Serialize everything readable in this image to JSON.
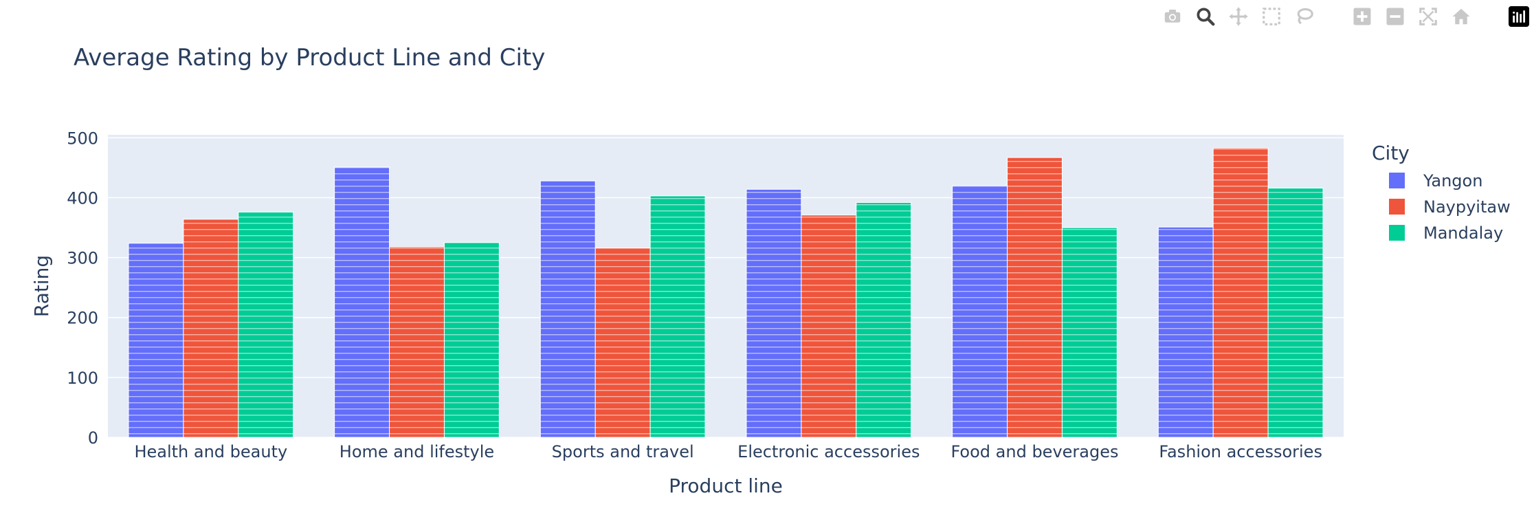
{
  "modebar": {
    "buttons": [
      "camera-icon",
      "zoom-icon",
      "pan-icon",
      "box-select-icon",
      "lasso-icon",
      "zoom-in-icon",
      "zoom-out-icon",
      "autoscale-icon",
      "home-icon",
      "plotly-logo-icon"
    ]
  },
  "colors": {
    "Yangon": "#636efa",
    "Naypyitaw": "#ef553b",
    "Mandalay": "#00cc96",
    "plot_bg": "#e5ecf6",
    "grid": "#ffffff",
    "text": "#2a3f5f"
  },
  "chart_data": {
    "type": "bar",
    "barmode": "group",
    "title": "Average Rating by Product Line and City",
    "xlabel": "Product line",
    "ylabel": "Rating",
    "ylim": [
      0,
      505
    ],
    "yticks": [
      0,
      100,
      200,
      300,
      400,
      500
    ],
    "grid": true,
    "legend_title": "City",
    "legend_position": "right",
    "categories": [
      "Health and beauty",
      "Home and lifestyle",
      "Sports and travel",
      "Electronic accessories",
      "Food and beverages",
      "Fashion accessories"
    ],
    "series": [
      {
        "name": "Yangon",
        "values": [
          324,
          451,
          428,
          414,
          420,
          351
        ]
      },
      {
        "name": "Naypyitaw",
        "values": [
          364,
          318,
          316,
          371,
          467,
          483
        ]
      },
      {
        "name": "Mandalay",
        "values": [
          376,
          325,
          403,
          392,
          350,
          416
        ]
      }
    ]
  }
}
